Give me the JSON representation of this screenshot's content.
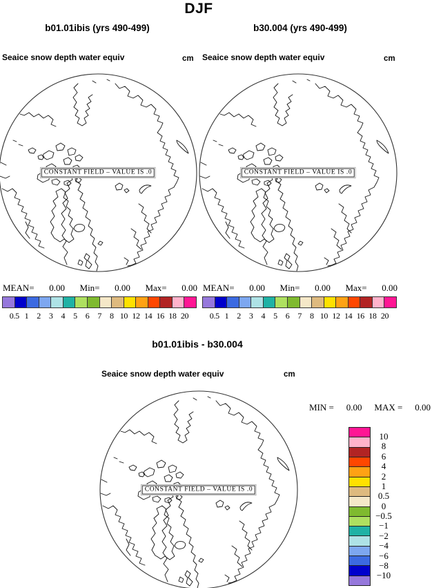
{
  "title": "DJF",
  "panels": {
    "left": {
      "run_label": "b01.01ibis (yrs 490-499)",
      "field_title": "Seaice snow depth water equiv",
      "units": "cm",
      "map_note": "CONSTANT FIELD – VALUE IS .0",
      "stats": {
        "mean_label": "MEAN=",
        "mean": "0.00",
        "min_label": "Min=",
        "min": "0.00",
        "max_label": "Max=",
        "max": "0.00"
      }
    },
    "right": {
      "run_label": "b30.004 (yrs 490-499)",
      "field_title": "Seaice snow depth water equiv",
      "units": "cm",
      "map_note": "CONSTANT FIELD – VALUE IS .0",
      "stats": {
        "mean_label": "MEAN=",
        "mean": "0.00",
        "min_label": "Min=",
        "min": "0.00",
        "max_label": "Max=",
        "max": "0.00"
      }
    },
    "diff": {
      "run_label": "b01.01ibis - b30.004",
      "field_title": "Seaice snow depth water equiv",
      "units": "cm",
      "map_note": "CONSTANT FIELD – VALUE IS .0",
      "stats": {
        "min_label": "MIN =",
        "min": "0.00",
        "max_label": "MAX =",
        "max": "0.00"
      }
    }
  },
  "colorbar": {
    "colors": [
      "#9678dc",
      "#0000cc",
      "#3c6ae1",
      "#7da7f0",
      "#aee2e6",
      "#1fb2a5",
      "#aee060",
      "#7fba2f",
      "#f5e8c8",
      "#deba7f",
      "#ffe100",
      "#ffa214",
      "#ff4700",
      "#b22424",
      "#ffb3cb",
      "#ff1694"
    ],
    "ticks": [
      "0.5",
      "1",
      "2",
      "3",
      "4",
      "5",
      "6",
      "7",
      "8",
      "10",
      "12",
      "14",
      "16",
      "18",
      "20"
    ]
  },
  "diff_colorbar": {
    "colors": [
      "#ff1694",
      "#ffb3cb",
      "#b22424",
      "#ff4700",
      "#ffa214",
      "#ffe100",
      "#deba7f",
      "#f5e8c8",
      "#7fba2f",
      "#aee060",
      "#1fb2a5",
      "#aee2e6",
      "#7da7f0",
      "#3c6ae1",
      "#0000cc",
      "#9678dc"
    ],
    "ticks": [
      "10",
      "8",
      "6",
      "4",
      "2",
      "1",
      "0.5",
      "0",
      "−0.5",
      "−1",
      "−2",
      "−4",
      "−6",
      "−8",
      "−10"
    ]
  },
  "chart_data": [
    {
      "type": "heatmap",
      "subtype": "north-polar-stereographic-map",
      "season": "DJF",
      "title": "b01.01ibis (yrs 490-499)",
      "variable": "Seaice snow depth water equiv",
      "units": "cm",
      "constant_field": true,
      "field_value": 0,
      "stats": {
        "mean": 0.0,
        "min": 0.0,
        "max": 0.0
      },
      "colorbar_levels": [
        0.5,
        1,
        2,
        3,
        4,
        5,
        6,
        7,
        8,
        10,
        12,
        14,
        16,
        18,
        20
      ],
      "legend_position": "bottom"
    },
    {
      "type": "heatmap",
      "subtype": "north-polar-stereographic-map",
      "season": "DJF",
      "title": "b30.004 (yrs 490-499)",
      "variable": "Seaice snow depth water equiv",
      "units": "cm",
      "constant_field": true,
      "field_value": 0,
      "stats": {
        "mean": 0.0,
        "min": 0.0,
        "max": 0.0
      },
      "colorbar_levels": [
        0.5,
        1,
        2,
        3,
        4,
        5,
        6,
        7,
        8,
        10,
        12,
        14,
        16,
        18,
        20
      ],
      "legend_position": "bottom"
    },
    {
      "type": "heatmap",
      "subtype": "north-polar-stereographic-map",
      "season": "DJF",
      "title": "b01.01ibis - b30.004",
      "variable": "Seaice snow depth water equiv",
      "units": "cm",
      "constant_field": true,
      "field_value": 0,
      "stats": {
        "min": 0.0,
        "max": 0.0
      },
      "colorbar_levels": [
        10,
        8,
        6,
        4,
        2,
        1,
        0.5,
        0,
        -0.5,
        -1,
        -2,
        -4,
        -6,
        -8,
        -10
      ],
      "legend_position": "right"
    }
  ]
}
